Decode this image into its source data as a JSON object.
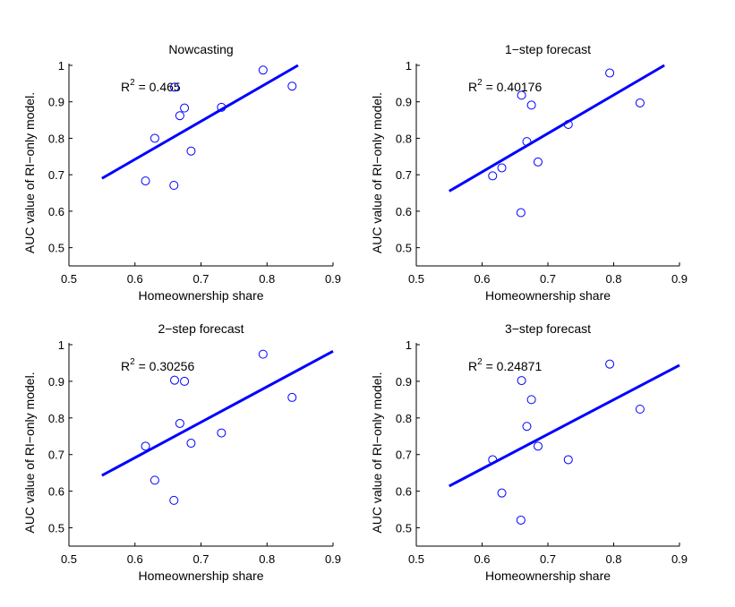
{
  "chart_data": [
    {
      "type": "scatter",
      "title": "Nowcasting",
      "xlabel": "Homeownership share",
      "ylabel": "AUC value of RI−only model.",
      "xlim": [
        0.5,
        0.9
      ],
      "ylim": [
        0.45,
        1.0
      ],
      "xticks": [
        "0.5",
        "0.6",
        "0.7",
        "0.8",
        "0.9"
      ],
      "yticks": [
        "0.5",
        "0.6",
        "0.7",
        "0.8",
        "0.9",
        "1"
      ],
      "annotation": {
        "prefix": "R",
        "sup": "2",
        "value": " = 0.465"
      },
      "points": [
        [
          0.616,
          0.683
        ],
        [
          0.63,
          0.8
        ],
        [
          0.659,
          0.671
        ],
        [
          0.66,
          0.94
        ],
        [
          0.668,
          0.862
        ],
        [
          0.675,
          0.883
        ],
        [
          0.685,
          0.765
        ],
        [
          0.731,
          0.885
        ],
        [
          0.794,
          0.987
        ],
        [
          0.838,
          0.943
        ]
      ],
      "fit_line": [
        [
          0.55,
          0.69
        ],
        [
          0.847,
          1.0
        ]
      ]
    },
    {
      "type": "scatter",
      "title": "1−step forecast",
      "xlabel": "Homeownership share",
      "ylabel": "AUC value of RI−only model.",
      "xlim": [
        0.5,
        0.9
      ],
      "ylim": [
        0.45,
        1.0
      ],
      "xticks": [
        "0.5",
        "0.6",
        "0.7",
        "0.8",
        "0.9"
      ],
      "yticks": [
        "0.5",
        "0.6",
        "0.7",
        "0.8",
        "0.9",
        "1"
      ],
      "annotation": {
        "prefix": "R",
        "sup": "2",
        "value": " = 0.40176"
      },
      "points": [
        [
          0.616,
          0.697
        ],
        [
          0.63,
          0.719
        ],
        [
          0.659,
          0.596
        ],
        [
          0.66,
          0.918
        ],
        [
          0.668,
          0.791
        ],
        [
          0.675,
          0.891
        ],
        [
          0.685,
          0.735
        ],
        [
          0.731,
          0.838
        ],
        [
          0.794,
          0.979
        ],
        [
          0.84,
          0.897
        ]
      ],
      "fit_line": [
        [
          0.55,
          0.655
        ],
        [
          0.877,
          1.0
        ]
      ]
    },
    {
      "type": "scatter",
      "title": "2−step forecast",
      "xlabel": "Homeownership share",
      "ylabel": "AUC value of RI−only model.",
      "xlim": [
        0.5,
        0.9
      ],
      "ylim": [
        0.45,
        1.0
      ],
      "xticks": [
        "0.5",
        "0.6",
        "0.7",
        "0.8",
        "0.9"
      ],
      "yticks": [
        "0.5",
        "0.6",
        "0.7",
        "0.8",
        "0.9",
        "1"
      ],
      "annotation": {
        "prefix": "R",
        "sup": "2",
        "value": " = 0.30256"
      },
      "points": [
        [
          0.616,
          0.723
        ],
        [
          0.63,
          0.63
        ],
        [
          0.659,
          0.575
        ],
        [
          0.66,
          0.903
        ],
        [
          0.668,
          0.785
        ],
        [
          0.675,
          0.9
        ],
        [
          0.685,
          0.731
        ],
        [
          0.731,
          0.759
        ],
        [
          0.794,
          0.974
        ],
        [
          0.838,
          0.856
        ]
      ],
      "fit_line": [
        [
          0.55,
          0.643
        ],
        [
          0.9,
          0.982
        ]
      ]
    },
    {
      "type": "scatter",
      "title": "3−step forecast",
      "xlabel": "Homeownership share",
      "ylabel": "AUC value of RI−only model.",
      "xlim": [
        0.5,
        0.9
      ],
      "ylim": [
        0.45,
        1.0
      ],
      "xticks": [
        "0.5",
        "0.6",
        "0.7",
        "0.8",
        "0.9"
      ],
      "yticks": [
        "0.5",
        "0.6",
        "0.7",
        "0.8",
        "0.9",
        "1"
      ],
      "annotation": {
        "prefix": "R",
        "sup": "2",
        "value": " = 0.24871"
      },
      "points": [
        [
          0.616,
          0.686
        ],
        [
          0.63,
          0.595
        ],
        [
          0.659,
          0.521
        ],
        [
          0.66,
          0.902
        ],
        [
          0.668,
          0.777
        ],
        [
          0.675,
          0.85
        ],
        [
          0.685,
          0.723
        ],
        [
          0.731,
          0.686
        ],
        [
          0.794,
          0.947
        ],
        [
          0.84,
          0.824
        ]
      ],
      "fit_line": [
        [
          0.55,
          0.614
        ],
        [
          0.9,
          0.944
        ]
      ]
    }
  ],
  "colors": {
    "marker": "#0000ff",
    "fit_line": "#0000ff",
    "axes": "#000000"
  }
}
